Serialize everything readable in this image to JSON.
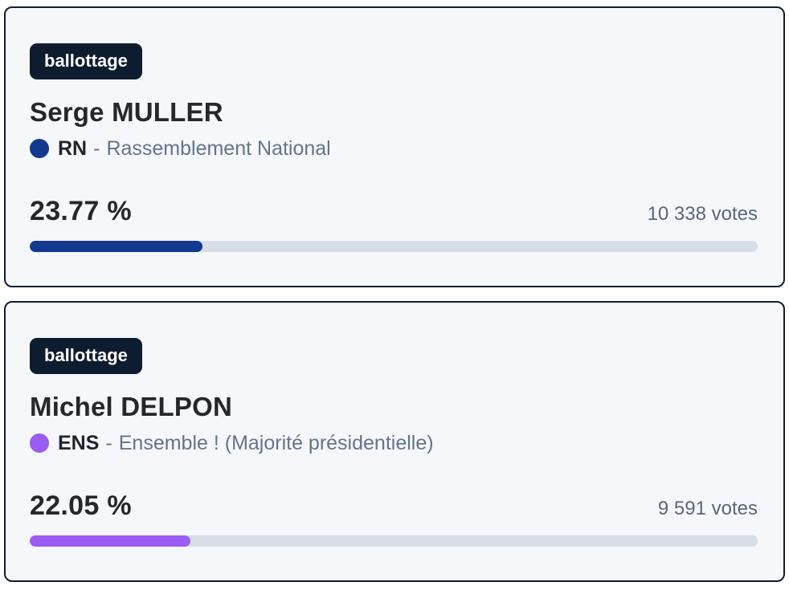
{
  "colors": {
    "page_background": "#ffffff",
    "card_background": "#f5f7fa",
    "card_border": "#0f1e33",
    "badge_background": "#0e1c30",
    "badge_text": "#ffffff",
    "track": "#d8dee6",
    "rn_blue": "#13388f",
    "ens_purple": "#9a5cf2"
  },
  "cards": [
    {
      "badge": "ballottage",
      "name": "Serge MULLER",
      "party_code": "RN",
      "party_separator": "-",
      "party_name": "Rassemblement National",
      "party_color": "#13388f",
      "percent_label": "23.77 %",
      "percent_value": 23.77,
      "votes": "10 338 votes",
      "bar_color": "#13388f"
    },
    {
      "badge": "ballottage",
      "name": "Michel DELPON",
      "party_code": "ENS",
      "party_separator": "-",
      "party_name": "Ensemble ! (Majorité présidentielle)",
      "party_color": "#9a5cf2",
      "percent_label": "22.05 %",
      "percent_value": 22.05,
      "votes": "9 591 votes",
      "bar_color": "#9a5cf2"
    }
  ]
}
